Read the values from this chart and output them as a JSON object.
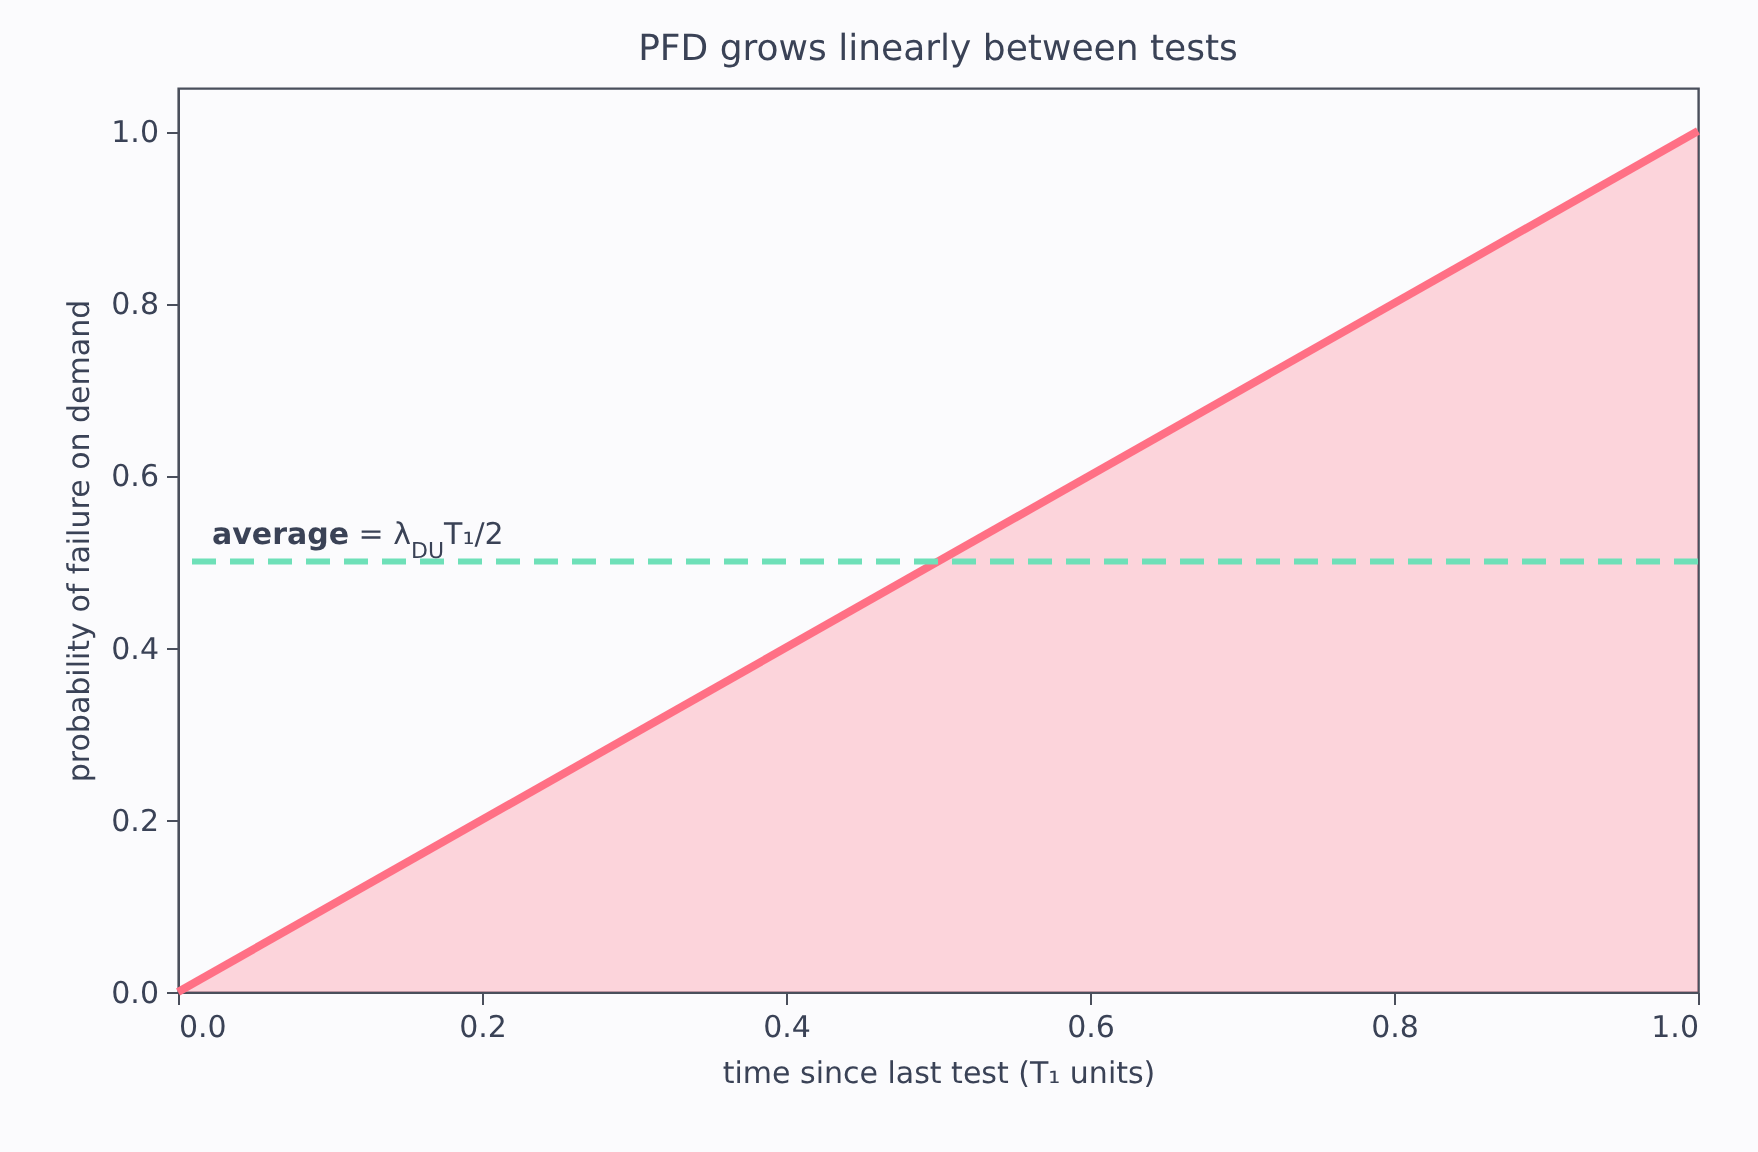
{
  "chart_data": {
    "type": "area",
    "title": "PFD grows linearly between tests",
    "xlabel": "time since last test (T₁ units)",
    "ylabel": "probability of failure on demand",
    "x": [
      0,
      1
    ],
    "series": [
      {
        "color": "#ff7085",
        "values": [
          0,
          1
        ]
      }
    ],
    "xlim": [
      0,
      1
    ],
    "xticks": [
      {
        "value": 0,
        "label": "0.0"
      },
      0.2,
      0.4,
      0.6,
      0.8,
      {
        "value": 1,
        "label": "1.0"
      }
    ],
    "ylim": [
      0,
      1.05
    ],
    "yticks": [
      {
        "value": 0,
        "label": "0.0"
      },
      0.2,
      0.4,
      0.6,
      0.8,
      {
        "value": 1,
        "label": "1.0"
      }
    ],
    "ref_lines": [
      {
        "axis": "y",
        "value": 0.5,
        "label": "average = λ$_{DU}$T₁/2",
        "color": "#6ee0b8",
        "line_style": "dashed"
      }
    ],
    "grid": false
  }
}
